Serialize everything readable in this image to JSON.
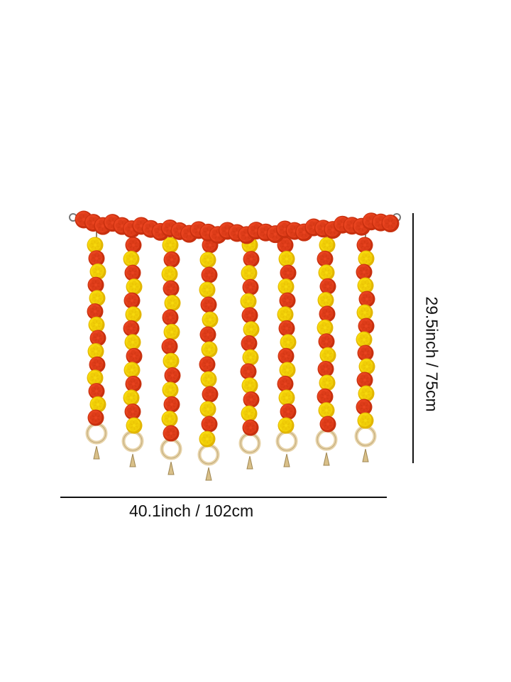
{
  "product": {
    "width_label": "40.1inch / 102cm",
    "height_label": "29.5inch / 75cm",
    "strand_count": 8,
    "colors": {
      "orange": "#e8431f",
      "orange_dark": "#c8300f",
      "yellow": "#f7d90c",
      "yellow_dark": "#e2b600",
      "ring": "#e7d3a8",
      "line": "#111111"
    }
  }
}
